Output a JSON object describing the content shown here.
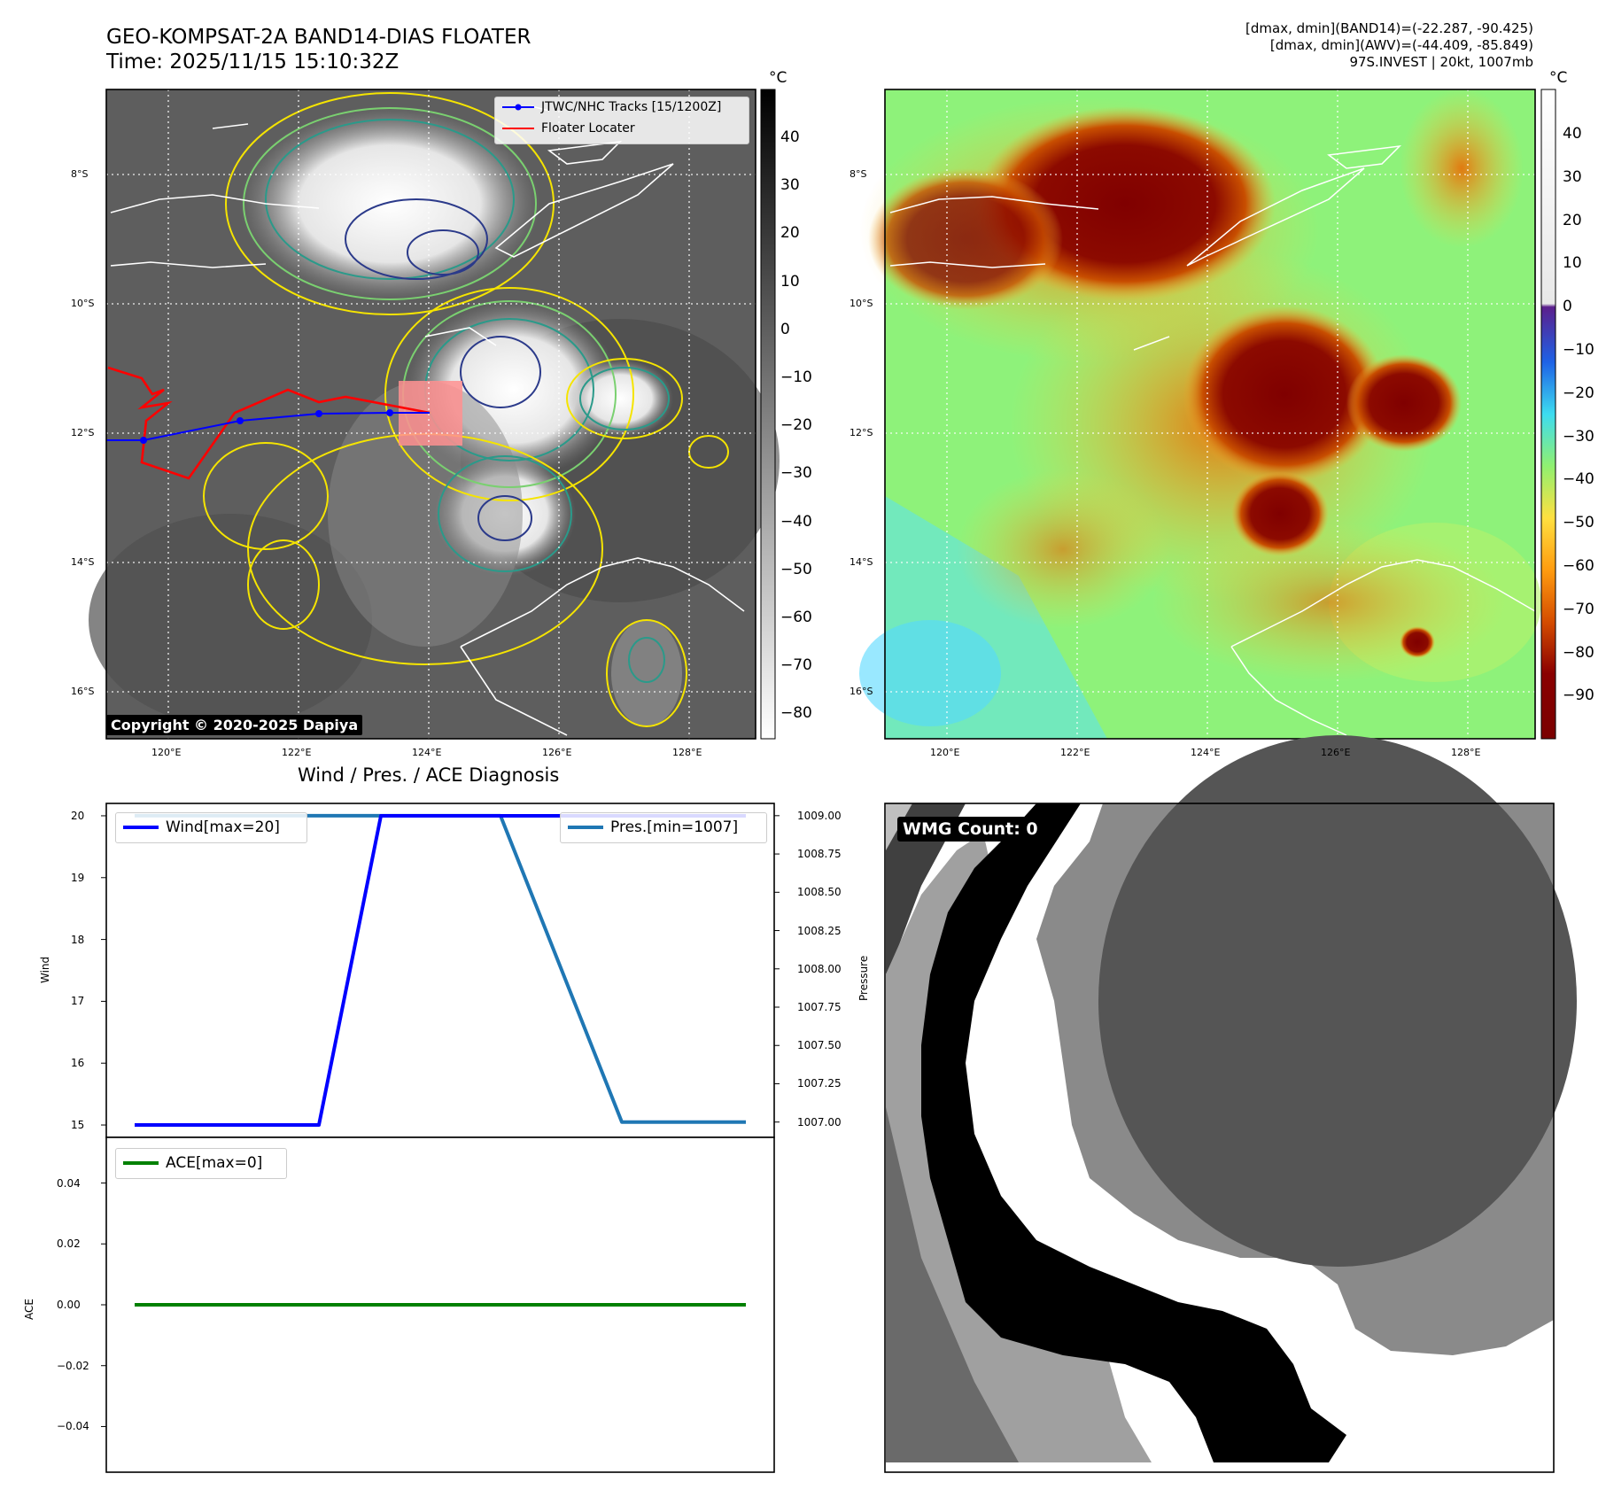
{
  "top_left": {
    "title_line1": "GEO-KOMPSAT-2A BAND14-DIAS FLOATER",
    "title_line2": "Time: 2025/11/15 15:10:32Z",
    "lat_labels": [
      "8°S",
      "10°S",
      "12°S",
      "14°S",
      "16°S"
    ],
    "lon_labels": [
      "120°E",
      "122°E",
      "124°E",
      "126°E",
      "128°E"
    ],
    "legend": [
      {
        "label": "JTWC/NHC Tracks [15/1200Z]",
        "color": "#0000ff"
      },
      {
        "label": "Floater Locater",
        "color": "#ff0000"
      }
    ],
    "copyright": "Copyright © 2020-2025 Dapiya",
    "colorbar_unit": "°C",
    "colorbar_ticks": [
      "40",
      "30",
      "20",
      "10",
      "0",
      "−10",
      "−20",
      "−30",
      "−40",
      "−50",
      "−60",
      "−70",
      "−80"
    ],
    "subplot_title": "Wind / Pres. / ACE Diagnosis"
  },
  "top_right": {
    "meta_line1": "[dmax, dmin](BAND14)=(-22.287, -90.425)",
    "meta_line2": "[dmax, dmin](AWV)=(-44.409, -85.849)",
    "meta_line3": "97S.INVEST | 20kt, 1007mb",
    "lat_labels": [
      "8°S",
      "10°S",
      "12°S",
      "14°S",
      "16°S"
    ],
    "lon_labels": [
      "120°E",
      "122°E",
      "124°E",
      "126°E",
      "128°E"
    ],
    "colorbar_unit": "°C",
    "colorbar_ticks": [
      "40",
      "30",
      "20",
      "10",
      "0",
      "−10",
      "−20",
      "−30",
      "−40",
      "−50",
      "−60",
      "−70",
      "−80",
      "−90"
    ]
  },
  "wmg": {
    "label": "WMG Count: 0"
  },
  "chart_data": [
    {
      "type": "line",
      "title": "Wind / Pres. / ACE Diagnosis",
      "x": [
        0,
        1,
        2,
        3,
        4,
        5
      ],
      "series": [
        {
          "name": "Wind[max=20]",
          "axis": "left",
          "values": [
            15,
            15,
            20,
            20,
            20,
            20
          ],
          "color": "#0000ff"
        },
        {
          "name": "Pres.[min=1007]",
          "axis": "right",
          "values": [
            1009,
            1009,
            1009,
            1009,
            1007,
            1007
          ],
          "color": "#1f77b4"
        }
      ],
      "ylabel": "Wind",
      "ylabel_right": "Pressure",
      "ylim": [
        14.8,
        20.2
      ],
      "ylim_right": [
        1006.9,
        1009.08
      ],
      "yticks": [
        "20",
        "19",
        "18",
        "17",
        "16",
        "15"
      ],
      "yticks_right": [
        "1009.00",
        "1008.75",
        "1008.50",
        "1008.25",
        "1008.00",
        "1007.75",
        "1007.50",
        "1007.25",
        "1007.00"
      ]
    },
    {
      "type": "line",
      "x": [
        0,
        1,
        2,
        3,
        4,
        5
      ],
      "series": [
        {
          "name": "ACE[max=0]",
          "values": [
            0,
            0,
            0,
            0,
            0,
            0
          ],
          "color": "#008000"
        }
      ],
      "ylabel": "ACE",
      "ylim": [
        -0.055,
        0.055
      ],
      "yticks": [
        "0.04",
        "0.02",
        "0.00",
        "−0.02",
        "−0.04"
      ]
    }
  ]
}
